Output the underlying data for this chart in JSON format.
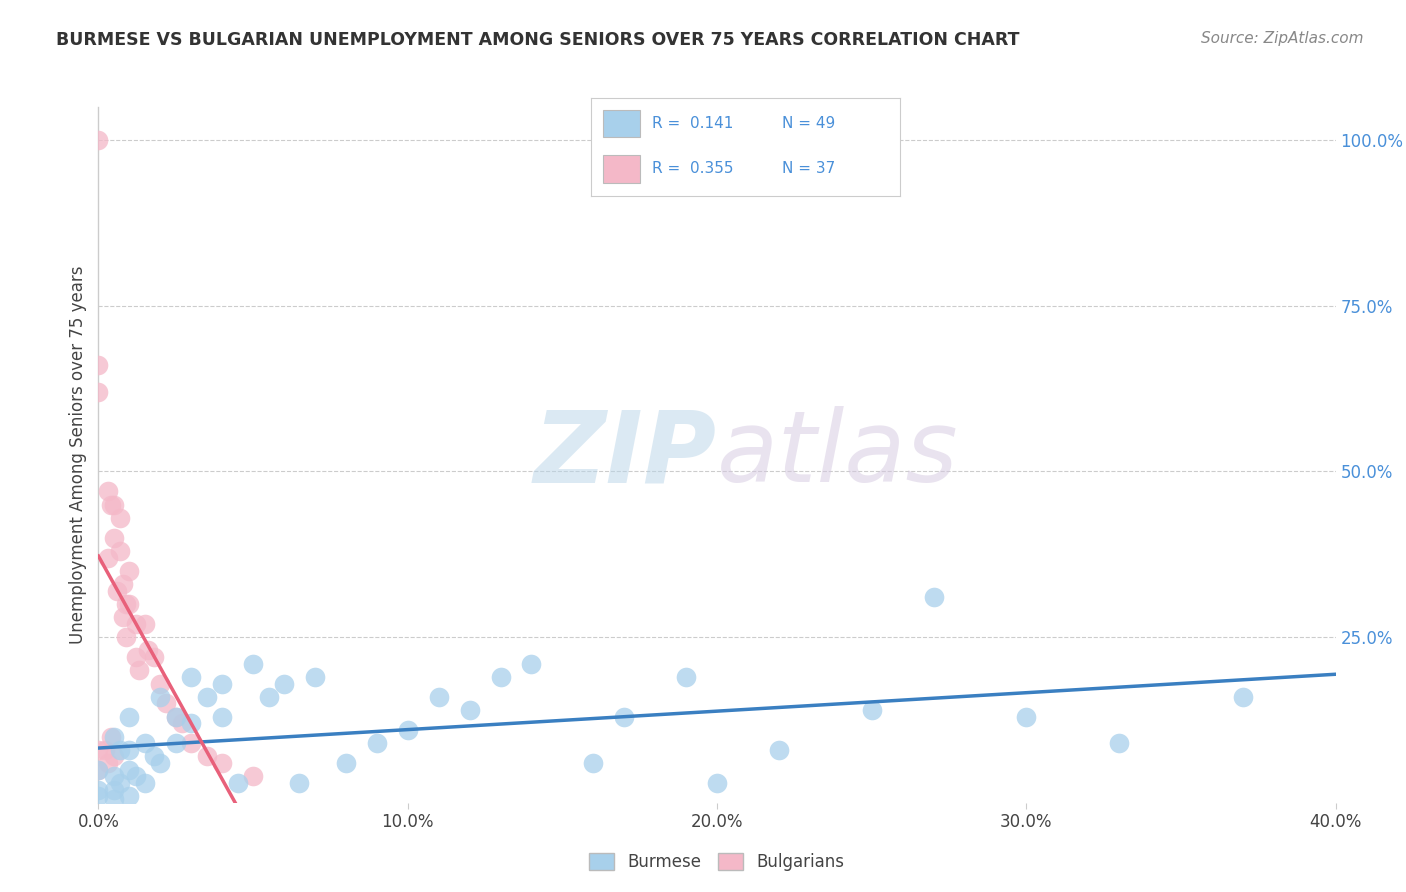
{
  "title": "BURMESE VS BULGARIAN UNEMPLOYMENT AMONG SENIORS OVER 75 YEARS CORRELATION CHART",
  "source": "Source: ZipAtlas.com",
  "ylabel": "Unemployment Among Seniors over 75 years",
  "xlim": [
    0.0,
    0.4
  ],
  "ylim": [
    0.0,
    1.05
  ],
  "xtick_labels": [
    "0.0%",
    "10.0%",
    "20.0%",
    "30.0%",
    "40.0%"
  ],
  "xtick_vals": [
    0.0,
    0.1,
    0.2,
    0.3,
    0.4
  ],
  "ytick_labels": [
    "100.0%",
    "75.0%",
    "50.0%",
    "25.0%"
  ],
  "ytick_vals": [
    1.0,
    0.75,
    0.5,
    0.25
  ],
  "burmese_color": "#a8d0eb",
  "bulgarian_color": "#f4b8c8",
  "burmese_line_color": "#3a7fc1",
  "bulgarian_line_color": "#e8607a",
  "R_burmese": 0.141,
  "N_burmese": 49,
  "R_bulgarian": 0.355,
  "N_bulgarian": 37,
  "legend_label_burmese": "Burmese",
  "legend_label_bulgarian": "Bulgarians",
  "watermark_zip": "ZIP",
  "watermark_atlas": "atlas",
  "grid_color": "#cccccc",
  "background_color": "#ffffff",
  "text_color": "#4a90d9",
  "burmese_x": [
    0.0,
    0.0,
    0.0,
    0.005,
    0.005,
    0.005,
    0.005,
    0.007,
    0.007,
    0.01,
    0.01,
    0.01,
    0.01,
    0.012,
    0.015,
    0.015,
    0.018,
    0.02,
    0.02,
    0.025,
    0.025,
    0.03,
    0.03,
    0.035,
    0.04,
    0.04,
    0.045,
    0.05,
    0.055,
    0.06,
    0.065,
    0.07,
    0.08,
    0.09,
    0.1,
    0.11,
    0.12,
    0.13,
    0.14,
    0.16,
    0.17,
    0.19,
    0.2,
    0.22,
    0.25,
    0.27,
    0.3,
    0.33,
    0.37
  ],
  "burmese_y": [
    0.05,
    0.02,
    0.01,
    0.1,
    0.04,
    0.02,
    0.005,
    0.08,
    0.03,
    0.13,
    0.08,
    0.05,
    0.01,
    0.04,
    0.09,
    0.03,
    0.07,
    0.16,
    0.06,
    0.13,
    0.09,
    0.19,
    0.12,
    0.16,
    0.18,
    0.13,
    0.03,
    0.21,
    0.16,
    0.18,
    0.03,
    0.19,
    0.06,
    0.09,
    0.11,
    0.16,
    0.14,
    0.19,
    0.21,
    0.06,
    0.13,
    0.19,
    0.03,
    0.08,
    0.14,
    0.31,
    0.13,
    0.09,
    0.16
  ],
  "bulgarian_x": [
    0.0,
    0.0,
    0.0,
    0.0,
    0.0,
    0.002,
    0.003,
    0.003,
    0.003,
    0.004,
    0.004,
    0.005,
    0.005,
    0.005,
    0.006,
    0.007,
    0.007,
    0.008,
    0.008,
    0.009,
    0.009,
    0.01,
    0.01,
    0.012,
    0.012,
    0.013,
    0.015,
    0.016,
    0.018,
    0.02,
    0.022,
    0.025,
    0.027,
    0.03,
    0.035,
    0.04,
    0.05
  ],
  "bulgarian_y": [
    1.0,
    0.66,
    0.62,
    0.08,
    0.05,
    0.08,
    0.47,
    0.37,
    0.06,
    0.45,
    0.1,
    0.45,
    0.4,
    0.07,
    0.32,
    0.43,
    0.38,
    0.33,
    0.28,
    0.3,
    0.25,
    0.35,
    0.3,
    0.27,
    0.22,
    0.2,
    0.27,
    0.23,
    0.22,
    0.18,
    0.15,
    0.13,
    0.12,
    0.09,
    0.07,
    0.06,
    0.04
  ]
}
